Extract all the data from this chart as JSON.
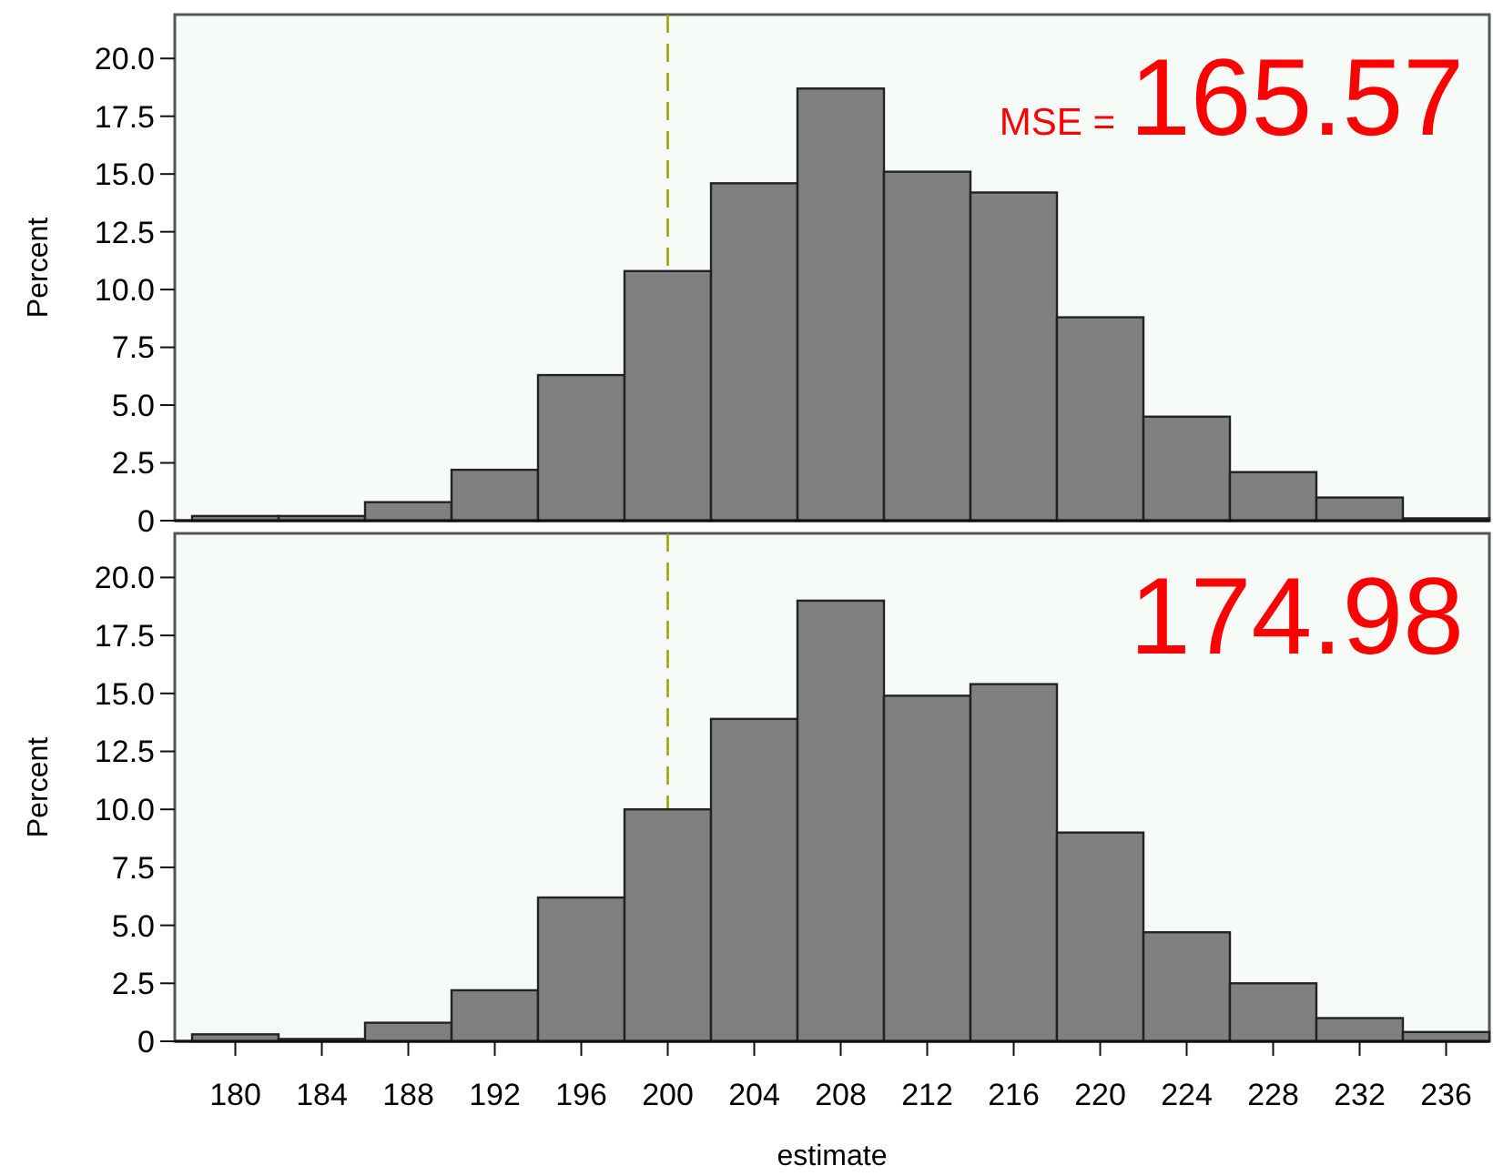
{
  "chart_data": [
    {
      "type": "histogram",
      "ylabel": "Percent",
      "bins": [
        178,
        182,
        186,
        190,
        194,
        198,
        202,
        206,
        210,
        214,
        218,
        222,
        226,
        230,
        234,
        238
      ],
      "values": [
        0.2,
        0.2,
        0.8,
        2.2,
        6.3,
        10.8,
        14.6,
        18.7,
        15.1,
        14.2,
        8.8,
        4.5,
        2.1,
        1.0,
        0.1
      ],
      "color": "#808080",
      "xlim": [
        177.2,
        238
      ],
      "ylim": [
        0,
        21.9
      ],
      "yticks": [
        0,
        2.5,
        {
          "value": 5,
          "label": "5.0"
        },
        7.5,
        {
          "value": 10,
          "label": "10.0"
        },
        12.5,
        {
          "value": 15,
          "label": "15.0"
        },
        17.5,
        {
          "value": 20,
          "label": "20.0"
        }
      ],
      "tick_labels": "y",
      "ref_lines": [
        {
          "axis": "x",
          "value": 200,
          "color": "#a0a000",
          "line_style": "dashed"
        }
      ],
      "annotations": [
        "MSE =",
        "165.57"
      ]
    },
    {
      "type": "histogram",
      "ylabel": "Percent",
      "xlabel": "estimate",
      "bins": [
        178,
        182,
        186,
        190,
        194,
        198,
        202,
        206,
        210,
        214,
        218,
        222,
        226,
        230,
        234,
        238
      ],
      "values": [
        0.3,
        0.1,
        0.8,
        2.2,
        6.2,
        10.0,
        13.9,
        19.0,
        14.9,
        15.4,
        9.0,
        4.7,
        2.5,
        1.0,
        0.4
      ],
      "color": "#808080",
      "xlim": [
        177.2,
        238
      ],
      "ylim": [
        0,
        21.9
      ],
      "xticks": [
        180,
        184,
        188,
        192,
        196,
        200,
        204,
        208,
        212,
        216,
        220,
        224,
        228,
        232,
        236
      ],
      "yticks": [
        0,
        2.5,
        {
          "value": 5,
          "label": "5.0"
        },
        7.5,
        {
          "value": 10,
          "label": "10.0"
        },
        12.5,
        {
          "value": 15,
          "label": "15.0"
        },
        17.5,
        {
          "value": 20,
          "label": "20.0"
        }
      ],
      "ref_lines": [
        {
          "axis": "x",
          "value": 200,
          "color": "#a0a000",
          "line_style": "dashed"
        }
      ],
      "annotations": [
        "174.98"
      ]
    }
  ]
}
